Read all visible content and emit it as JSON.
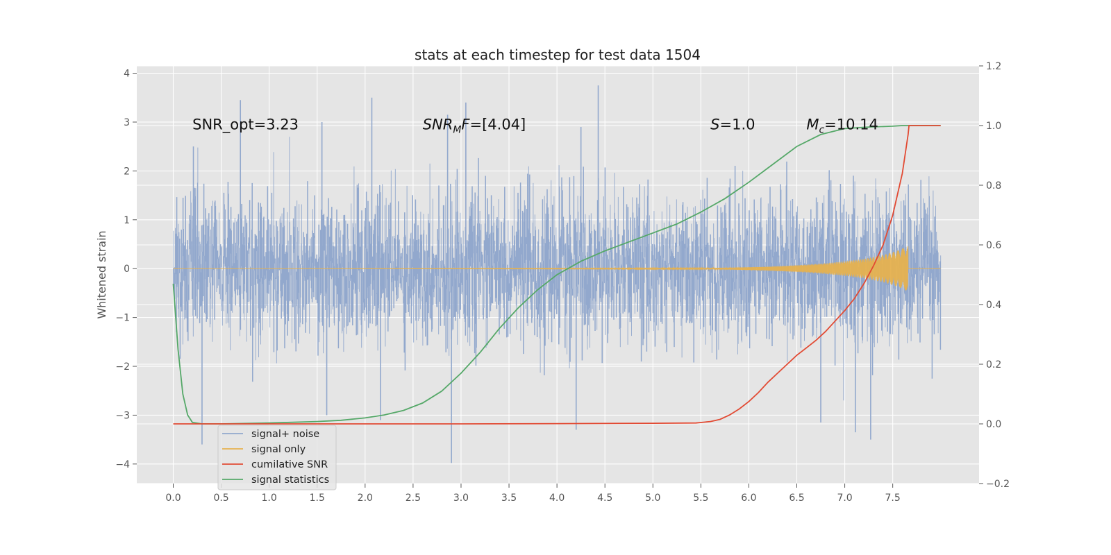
{
  "chart_data": {
    "type": "line",
    "title": "stats at each timestep for test data 1504",
    "xlabel": "",
    "ylabel": "Whitened strain",
    "y2label": "",
    "xlim": [
      -0.38,
      8.4
    ],
    "ylim": [
      -4.4,
      4.15
    ],
    "y2lim": [
      -0.2,
      1.2
    ],
    "x_ticks": [
      0.0,
      0.5,
      1.0,
      1.5,
      2.0,
      2.5,
      3.0,
      3.5,
      4.0,
      4.5,
      5.0,
      5.5,
      6.0,
      6.5,
      7.0,
      7.5
    ],
    "x_tick_labels": [
      "0.0",
      "0.5",
      "1.0",
      "1.5",
      "2.0",
      "2.5",
      "3.0",
      "3.5",
      "4.0",
      "4.5",
      "5.0",
      "5.5",
      "6.0",
      "6.5",
      "7.0",
      "7.5"
    ],
    "y_ticks": [
      -4,
      -3,
      -2,
      -1,
      0,
      1,
      2,
      3,
      4
    ],
    "y_tick_labels": [
      "−4",
      "−3",
      "−2",
      "−1",
      "0",
      "1",
      "2",
      "3",
      "4"
    ],
    "y2_ticks": [
      -0.2,
      0.0,
      0.2,
      0.4,
      0.6,
      0.8,
      1.0,
      1.2
    ],
    "y2_tick_labels": [
      "−0.2",
      "0.0",
      "0.2",
      "0.4",
      "0.6",
      "0.8",
      "1.0",
      "1.2"
    ],
    "grid": true,
    "background": "#e5e5e5",
    "legend_position": "lower left",
    "annotations": [
      {
        "text": "SNR_opt=3.23",
        "x": 0.2,
        "y": 2.95
      },
      {
        "main": "SNR",
        "sub": "M",
        "rest": "F=[4.04]",
        "x": 2.6,
        "y": 2.95
      },
      {
        "main": "S",
        "rest": "=1.0",
        "x": 5.6,
        "y": 2.95
      },
      {
        "main": "M",
        "sub": "c",
        "rest": "=10.14",
        "x": 6.6,
        "y": 2.95
      }
    ],
    "series": [
      {
        "name": "signal+ noise",
        "color": "#92a8cd",
        "axis": "left",
        "x_range": [
          0.0,
          8.0
        ],
        "typical_envelope": [
          -2.0,
          2.0
        ],
        "x": [
          0.21,
          0.3,
          0.7,
          1.55,
          1.6,
          2.07,
          2.16,
          2.86,
          2.9,
          3.05,
          4.2,
          4.25,
          4.43,
          6.75,
          7.11,
          7.27
        ],
        "y": [
          2.5,
          -3.6,
          3.45,
          3.0,
          -3.0,
          3.5,
          -3.1,
          3.15,
          -3.98,
          3.4,
          -3.3,
          2.9,
          3.75,
          -3.15,
          -3.35,
          -3.5
        ]
      },
      {
        "name": "signal only",
        "color": "#e6b14f",
        "axis": "left",
        "x": [
          0.0,
          5.5,
          5.8,
          6.0,
          6.2,
          6.4,
          6.6,
          6.8,
          7.0,
          7.2,
          7.4,
          7.55,
          7.66
        ],
        "y": [
          0.0,
          0.01,
          0.02,
          0.03,
          0.04,
          0.06,
          0.08,
          0.11,
          0.15,
          0.2,
          0.28,
          0.37,
          0.47
        ]
      },
      {
        "name": "cumilative SNR",
        "color": "#e24a33",
        "axis": "right",
        "x": [
          0.0,
          1.0,
          2.0,
          3.0,
          4.0,
          5.0,
          5.45,
          5.6,
          5.7,
          5.8,
          5.9,
          6.0,
          6.1,
          6.2,
          6.3,
          6.4,
          6.5,
          6.6,
          6.7,
          6.8,
          6.9,
          7.0,
          7.1,
          7.2,
          7.3,
          7.4,
          7.5,
          7.6,
          7.66,
          7.67,
          8.0
        ],
        "y": [
          0.0,
          0.0,
          0.0,
          0.0,
          0.001,
          0.002,
          0.003,
          0.008,
          0.015,
          0.03,
          0.05,
          0.075,
          0.105,
          0.14,
          0.17,
          0.2,
          0.23,
          0.255,
          0.28,
          0.31,
          0.345,
          0.38,
          0.42,
          0.47,
          0.53,
          0.6,
          0.7,
          0.84,
          0.97,
          1.0,
          1.0
        ]
      },
      {
        "name": "signal statistics",
        "color": "#348abd",
        "line_color": "#55a868",
        "axis": "right",
        "x": [
          0.0,
          0.05,
          0.1,
          0.15,
          0.2,
          0.3,
          0.5,
          1.0,
          1.5,
          1.75,
          2.0,
          2.2,
          2.4,
          2.6,
          2.8,
          3.0,
          3.2,
          3.4,
          3.6,
          3.8,
          4.0,
          4.25,
          4.5,
          4.75,
          5.0,
          5.25,
          5.5,
          5.75,
          6.0,
          6.25,
          6.5,
          6.75,
          7.0,
          7.25,
          7.5,
          7.6,
          8.0
        ],
        "y": [
          0.47,
          0.25,
          0.1,
          0.03,
          0.005,
          0.0,
          0.0,
          0.003,
          0.008,
          0.012,
          0.02,
          0.03,
          0.045,
          0.07,
          0.11,
          0.17,
          0.24,
          0.32,
          0.39,
          0.45,
          0.5,
          0.545,
          0.58,
          0.61,
          0.64,
          0.67,
          0.71,
          0.755,
          0.81,
          0.87,
          0.93,
          0.97,
          0.99,
          0.995,
          0.998,
          1.0,
          1.0
        ]
      }
    ]
  }
}
